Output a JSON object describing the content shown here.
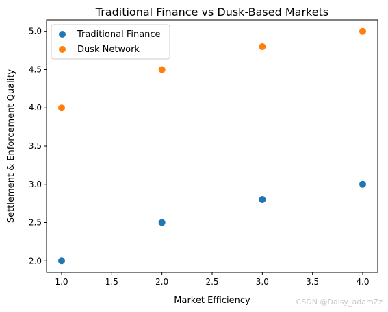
{
  "chart_data": {
    "type": "scatter",
    "title": "Traditional Finance vs Dusk-Based Markets",
    "xlabel": "Market Efficiency",
    "ylabel": "Settlement & Enforcement Quality",
    "xlim": [
      0.85,
      4.15
    ],
    "ylim": [
      1.85,
      5.15
    ],
    "xticks": [
      "1.0",
      "1.5",
      "2.0",
      "2.5",
      "3.0",
      "3.5",
      "4.0"
    ],
    "yticks": [
      "2.0",
      "2.5",
      "3.0",
      "3.5",
      "4.0",
      "4.5",
      "5.0"
    ],
    "grid": false,
    "legend_position": "top-left",
    "series": [
      {
        "name": "Traditional Finance",
        "color": "#1f77b4",
        "x": [
          1,
          2,
          3,
          4
        ],
        "y": [
          2.0,
          2.5,
          2.8,
          3.0
        ]
      },
      {
        "name": "Dusk Network",
        "color": "#ff7f0e",
        "x": [
          1,
          2,
          3,
          4
        ],
        "y": [
          4.0,
          4.5,
          4.8,
          5.0
        ]
      }
    ]
  },
  "watermark": "CSDN @Daisy_adamZz"
}
